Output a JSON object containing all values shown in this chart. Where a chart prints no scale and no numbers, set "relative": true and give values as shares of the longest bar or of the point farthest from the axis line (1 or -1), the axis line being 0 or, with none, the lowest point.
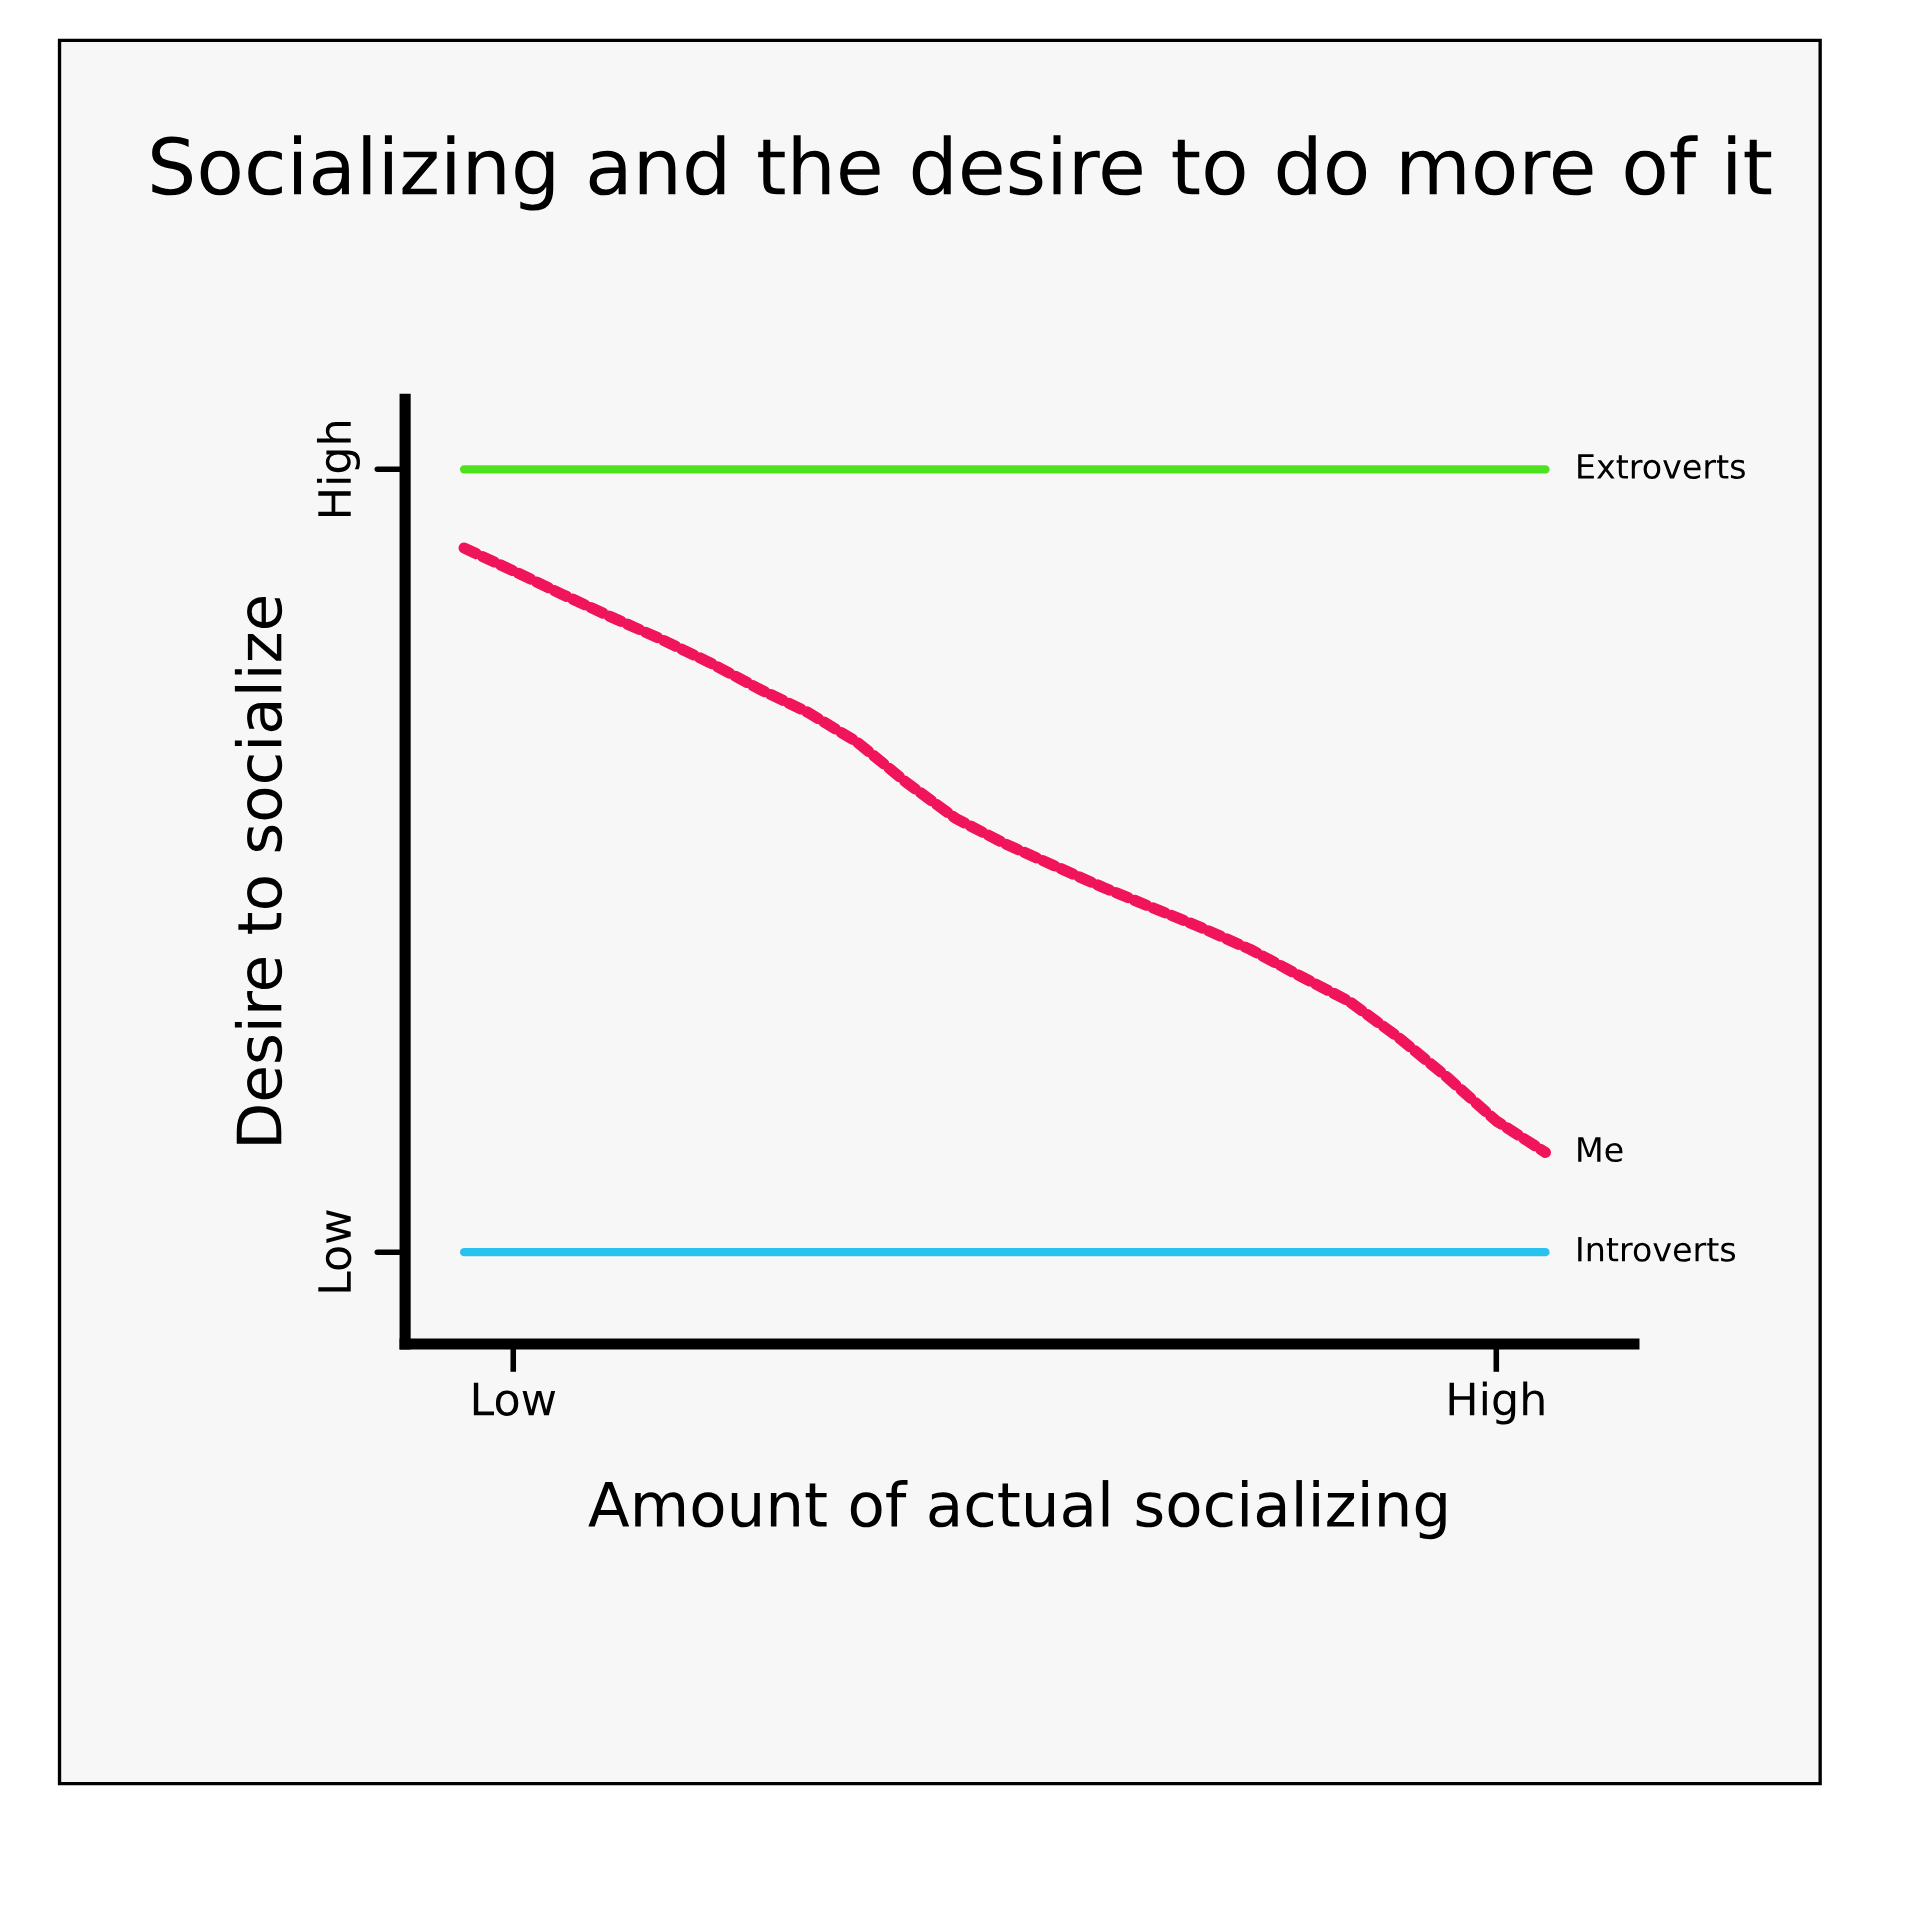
{
  "chart_data": {
    "type": "line",
    "title": "Socializing and the desire to do more of it",
    "xlabel": "Amount of actual socializing",
    "ylabel": "Desire to socialize",
    "relative": true,
    "categories": [
      null,
      "Low",
      null,
      null,
      null,
      null,
      null,
      null,
      null,
      null,
      null,
      null,
      null,
      null,
      null,
      null,
      null,
      null,
      null,
      null,
      null,
      "High",
      null
    ],
    "annotations": [
      "High",
      "Low"
    ],
    "grid": false,
    "legend": false,
    "marker": "none",
    "series": [
      {
        "name": "Extroverts",
        "color": "#4de21d",
        "line_style": "solid",
        "values": [
          1,
          1,
          1,
          1,
          1,
          1,
          1,
          1,
          1,
          1,
          1,
          1,
          1,
          1,
          1,
          1,
          1,
          1,
          1,
          1,
          1,
          1,
          1
        ]
      },
      {
        "name": "Me",
        "color": "#f0145a",
        "line_style": "dashed",
        "values": [
          0.91,
          0.884,
          0.857,
          0.831,
          0.806,
          0.779,
          0.749,
          0.722,
          0.688,
          0.642,
          0.601,
          0.572,
          0.547,
          0.522,
          0.499,
          0.476,
          0.451,
          0.421,
          0.392,
          0.351,
          0.305,
          0.255,
          0.219
        ]
      },
      {
        "name": "Introverts",
        "color": "#29c2f0",
        "line_style": "solid",
        "values": [
          0.105,
          0.105,
          0.105,
          0.105,
          0.105,
          0.105,
          0.105,
          0.105,
          0.105,
          0.105,
          0.105,
          0.105,
          0.105,
          0.105,
          0.105,
          0.105,
          0.105,
          0.105,
          0.105,
          0.105,
          0.105,
          0.105,
          0.105
        ]
      }
    ]
  }
}
